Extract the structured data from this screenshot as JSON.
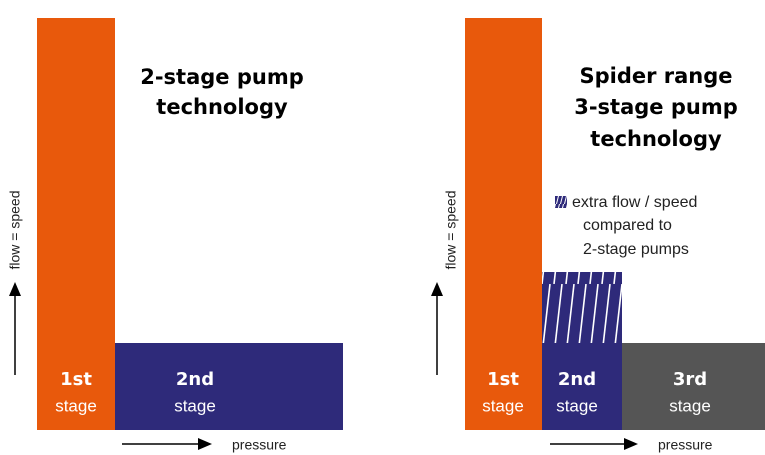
{
  "panels": [
    {
      "title": [
        "2-stage pump",
        "technology"
      ],
      "y_label": "flow = speed",
      "x_label": "pressure",
      "stages": [
        {
          "number": "1st",
          "label": "stage"
        },
        {
          "number": "2nd",
          "label": "stage"
        }
      ]
    },
    {
      "title": [
        "Spider range",
        "3-stage pump",
        "technology"
      ],
      "y_label": "flow = speed",
      "x_label": "pressure",
      "legend": [
        "extra flow / speed",
        "compared to",
        "2-stage pumps"
      ],
      "stages": [
        {
          "number": "1st",
          "label": "stage"
        },
        {
          "number": "2nd",
          "label": "stage"
        },
        {
          "number": "3rd",
          "label": "stage"
        }
      ]
    }
  ]
}
